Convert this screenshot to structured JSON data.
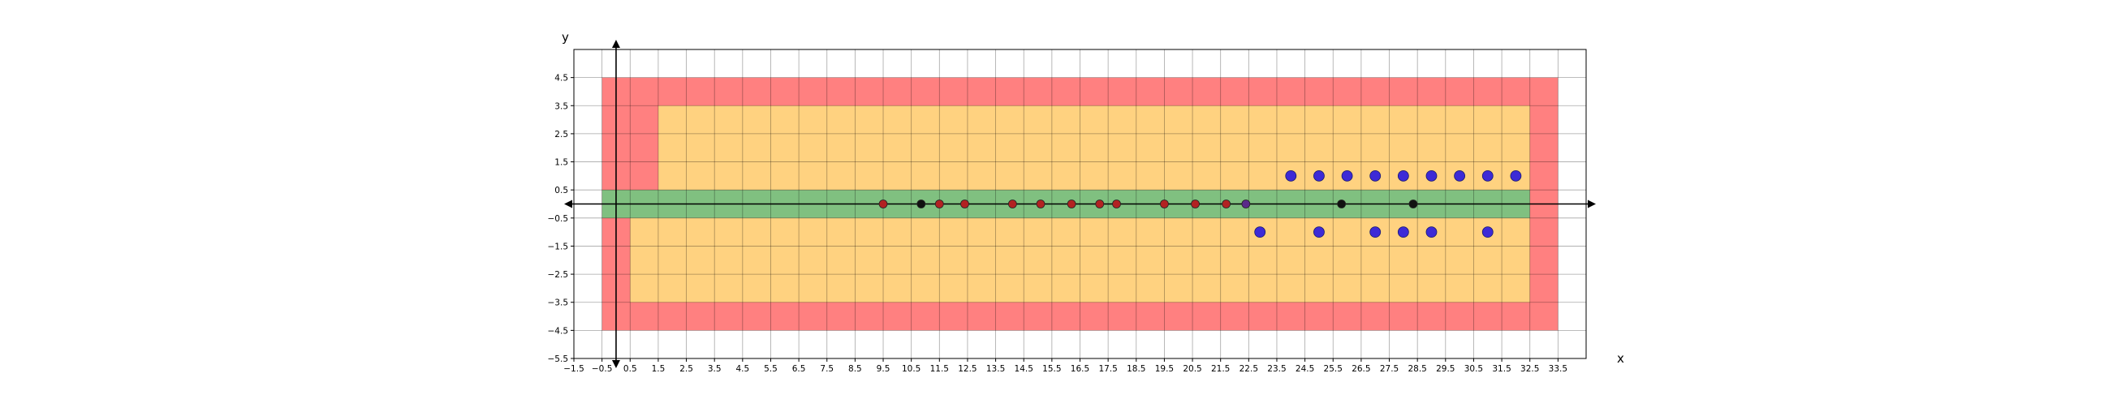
{
  "chart_data": {
    "type": "scatter",
    "title": "",
    "xlabel": "x",
    "ylabel": "y",
    "xlim": [
      -1.5,
      34.5
    ],
    "ylim": [
      -5.5,
      5.5
    ],
    "grid": true,
    "x_ticks": [
      -1.5,
      -0.5,
      0.5,
      1.5,
      2.5,
      3.5,
      4.5,
      5.5,
      6.5,
      7.5,
      8.5,
      9.5,
      10.5,
      11.5,
      12.5,
      13.5,
      14.5,
      15.5,
      16.5,
      17.5,
      18.5,
      19.5,
      20.5,
      21.5,
      22.5,
      23.5,
      24.5,
      25.5,
      26.5,
      27.5,
      28.5,
      29.5,
      30.5,
      31.5,
      32.5,
      33.5
    ],
    "x_tick_labels": [
      "−1.5",
      "−0.5",
      "0.5",
      "1.5",
      "2.5",
      "3.5",
      "4.5",
      "5.5",
      "6.5",
      "7.5",
      "8.5",
      "9.5",
      "10.5",
      "11.5",
      "12.5",
      "13.5",
      "14.5",
      "15.5",
      "16.5",
      "17.5",
      "18.5",
      "19.5",
      "20.5",
      "21.5",
      "22.5",
      "23.5",
      "24.5",
      "25.5",
      "26.5",
      "27.5",
      "28.5",
      "29.5",
      "30.5",
      "31.5",
      "32.5",
      "33.5"
    ],
    "y_ticks": [
      4.5,
      3.5,
      2.5,
      1.5,
      0.5,
      -0.5,
      -1.5,
      -2.5,
      -3.5,
      -4.5,
      -5.5
    ],
    "y_tick_labels": [
      "4.5",
      "3.5",
      "2.5",
      "1.5",
      "0.5",
      "−0.5",
      "−1.5",
      "−2.5",
      "−3.5",
      "−4.5",
      "−5.5"
    ],
    "colors": {
      "red_region": "#ff8080",
      "orange_region": "#ffd280",
      "green_region": "#80c080",
      "red_point": "#b22222",
      "black_point": "#111111",
      "blue_point": "#3d2ad6",
      "purple_point": "#5a2a8a"
    },
    "regions": [
      {
        "color": "red",
        "x": [
          -0.5,
          33.5
        ],
        "y": [
          -4.5,
          4.5
        ]
      },
      {
        "color": "orange",
        "x": [
          1.5,
          32.5
        ],
        "y": [
          0.5,
          3.5
        ]
      },
      {
        "color": "orange",
        "x": [
          0.5,
          32.5
        ],
        "y": [
          -3.5,
          -0.5
        ]
      },
      {
        "color": "green",
        "x": [
          -0.5,
          32.5
        ],
        "y": [
          -0.5,
          0.5
        ]
      }
    ],
    "series": [
      {
        "color": "red",
        "x": [
          9.5,
          11.5,
          12.4,
          14.1,
          15.1,
          16.2,
          17.2,
          17.8,
          19.5,
          20.6,
          21.7
        ],
        "y": [
          0,
          0,
          0,
          0,
          0,
          0,
          0,
          0,
          0,
          0,
          0
        ]
      },
      {
        "color": "black",
        "x": [
          10.85,
          25.8,
          28.35
        ],
        "y": [
          0,
          0,
          0
        ]
      },
      {
        "color": "purple",
        "x": [
          22.4
        ],
        "y": [
          0
        ]
      },
      {
        "color": "blue",
        "x": [
          24.0,
          25.0,
          26.0,
          27.0,
          28.0,
          29.0,
          30.0,
          31.0,
          32.0,
          22.9,
          25.0,
          27.0,
          28.0,
          29.0,
          31.0
        ],
        "y": [
          1,
          1,
          1,
          1,
          1,
          1,
          1,
          1,
          1,
          -1,
          -1,
          -1,
          -1,
          -1,
          -1
        ]
      }
    ]
  }
}
